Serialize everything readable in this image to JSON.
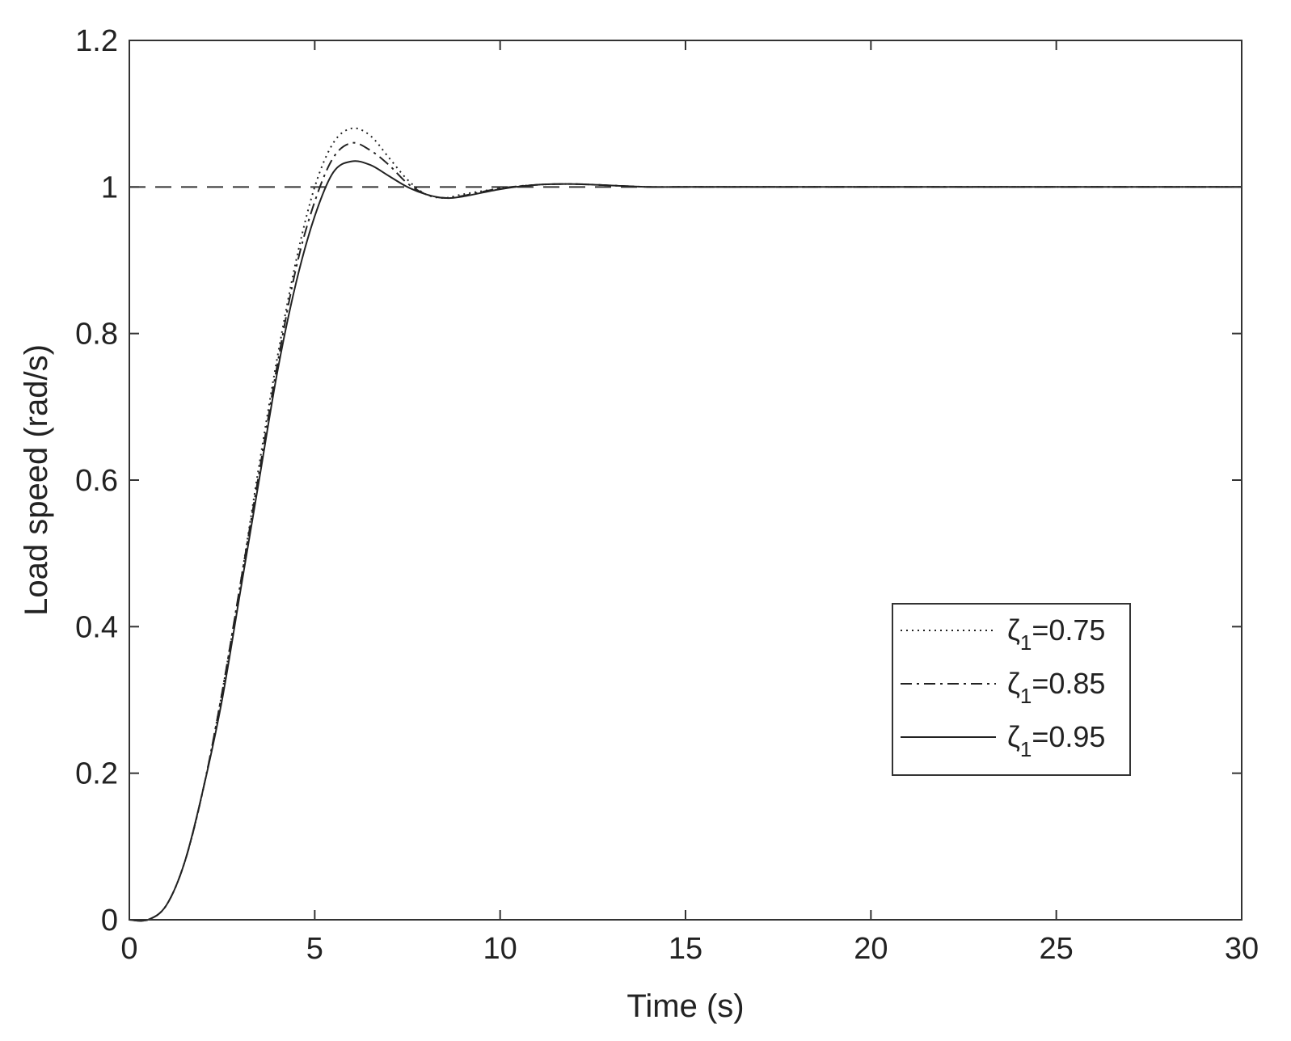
{
  "chart_data": {
    "type": "line",
    "title": "",
    "xlabel": "Time (s)",
    "ylabel": "Load speed (rad/s)",
    "xlim": [
      0,
      30
    ],
    "ylim": [
      0,
      1.2
    ],
    "xticks": [
      0,
      5,
      10,
      15,
      20,
      25,
      30
    ],
    "yticks": [
      0,
      0.2,
      0.4,
      0.6,
      0.8,
      1,
      1.2
    ],
    "xtick_labels": [
      "0",
      "5",
      "10",
      "15",
      "20",
      "25",
      "30"
    ],
    "ytick_labels": [
      "0",
      "0.2",
      "0.4",
      "0.6",
      "0.8",
      "1",
      "1.2"
    ],
    "grid": false,
    "legend_position": "lower-right",
    "reference": {
      "y": 1,
      "style": "dashed"
    },
    "series": [
      {
        "name": "ζ₁=0.75",
        "legend_symbol": "ζ",
        "legend_sub": "1",
        "legend_value": "=0.75",
        "style": "dotted",
        "x": [
          0,
          0.5,
          1,
          1.5,
          2,
          2.5,
          3,
          3.5,
          4,
          4.5,
          5,
          5.5,
          6,
          6.5,
          7,
          7.5,
          8,
          8.5,
          9,
          10,
          11,
          12,
          13,
          14,
          15,
          20,
          25,
          30
        ],
        "y": [
          0,
          0,
          0.02,
          0.08,
          0.18,
          0.31,
          0.46,
          0.62,
          0.77,
          0.9,
          1.0,
          1.06,
          1.08,
          1.07,
          1.04,
          1.01,
          0.99,
          0.985,
          0.99,
          0.998,
          1.003,
          1.004,
          1.002,
          1.0,
          1.0,
          1.0,
          1.0,
          1.0
        ]
      },
      {
        "name": "ζ₁=0.85",
        "legend_symbol": "ζ",
        "legend_sub": "1",
        "legend_value": "=0.85",
        "style": "dashdot",
        "x": [
          0,
          0.5,
          1,
          1.5,
          2,
          2.5,
          3,
          3.5,
          4,
          4.5,
          5,
          5.5,
          6,
          6.5,
          7,
          7.5,
          8,
          8.5,
          9,
          10,
          11,
          12,
          13,
          14,
          15,
          20,
          25,
          30
        ],
        "y": [
          0,
          0,
          0.02,
          0.08,
          0.18,
          0.31,
          0.46,
          0.61,
          0.76,
          0.89,
          0.98,
          1.04,
          1.06,
          1.05,
          1.03,
          1.005,
          0.99,
          0.985,
          0.988,
          0.998,
          1.003,
          1.004,
          1.002,
          1.0,
          1.0,
          1.0,
          1.0,
          1.0
        ]
      },
      {
        "name": "ζ₁=0.95",
        "legend_symbol": "ζ",
        "legend_sub": "1",
        "legend_value": "=0.95",
        "style": "solid",
        "x": [
          0,
          0.5,
          1,
          1.5,
          2,
          2.5,
          3,
          3.5,
          4,
          4.5,
          5,
          5.5,
          6,
          6.5,
          7,
          7.5,
          8,
          8.5,
          9,
          10,
          11,
          12,
          13,
          14,
          15,
          20,
          25,
          30
        ],
        "y": [
          0,
          0,
          0.02,
          0.08,
          0.18,
          0.3,
          0.45,
          0.6,
          0.75,
          0.87,
          0.96,
          1.02,
          1.035,
          1.03,
          1.015,
          1.0,
          0.99,
          0.985,
          0.987,
          0.997,
          1.003,
          1.004,
          1.002,
          1.0,
          1.0,
          1.0,
          1.0,
          1.0
        ]
      }
    ]
  }
}
